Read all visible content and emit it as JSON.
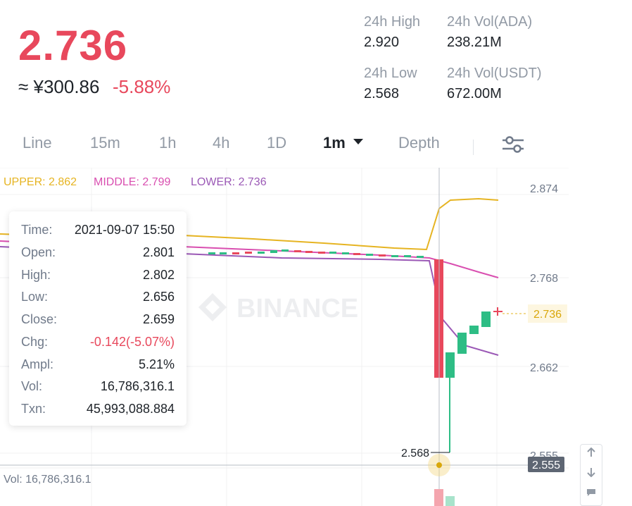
{
  "ticker": {
    "last_price": "2.736",
    "cny_price": "≈ ¥300.86",
    "change_pct": "-5.88%"
  },
  "stats": {
    "high_label": "24h High",
    "high_value": "2.920",
    "low_label": "24h Low",
    "low_value": "2.568",
    "vol_ada_label": "24h Vol(ADA)",
    "vol_ada_value": "238.21M",
    "vol_usdt_label": "24h Vol(USDT)",
    "vol_usdt_value": "672.00M"
  },
  "tabs": [
    {
      "label": "Line"
    },
    {
      "label": "15m"
    },
    {
      "label": "1h"
    },
    {
      "label": "4h"
    },
    {
      "label": "1D"
    },
    {
      "label": "1m",
      "active": true
    },
    {
      "label": "Depth"
    }
  ],
  "indicators": {
    "upper": "UPPER: 2.862",
    "middle": "MIDDLE: 2.799",
    "lower": "LOWER: 2.736"
  },
  "watermark": "BINANCE",
  "tooltip": {
    "rows": [
      {
        "key": "Time:",
        "value": "2021-09-07 15:50"
      },
      {
        "key": "Open:",
        "value": "2.801"
      },
      {
        "key": "High:",
        "value": "2.802"
      },
      {
        "key": "Low:",
        "value": "2.656"
      },
      {
        "key": "Close:",
        "value": "2.659"
      },
      {
        "key": "Chg:",
        "value": "-0.142(-5.07%)",
        "negative": true
      },
      {
        "key": "Ampl:",
        "value": "5.21%"
      },
      {
        "key": "Vol:",
        "value": "16,786,316.1"
      },
      {
        "key": "Txn:",
        "value": "45,993,088.884"
      }
    ]
  },
  "price_axis": {
    "labels": [
      "2.874",
      "2.768",
      "2.662",
      "2.555"
    ],
    "current": "2.736",
    "crosshair": "2.555"
  },
  "low_marker": "2.568",
  "volume_label": "Vol: 16,786,316.1",
  "colors": {
    "up": "#2ebd85",
    "down": "#e8485c",
    "upper_band": "#e6b422",
    "middle_band": "#d94fb0",
    "lower_band": "#9b59b6"
  },
  "icons": {
    "settings": "sliders-icon",
    "dropdown": "caret-down-icon",
    "scroll_up": "arrow-up-icon",
    "scroll_down": "arrow-down-icon",
    "comment": "comment-icon"
  }
}
